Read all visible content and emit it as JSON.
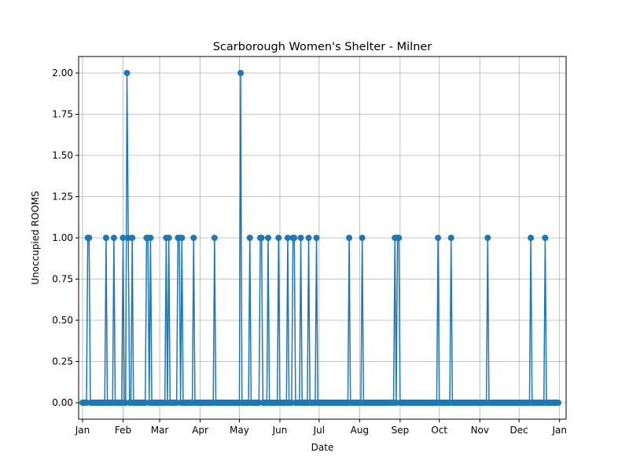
{
  "colors": {
    "series": "#1f77b4",
    "grid": "#b0b0b0",
    "axis": "#000000"
  },
  "chart_data": {
    "type": "line",
    "title": "Scarborough Women's Shelter - Milner",
    "xlabel": "Date",
    "ylabel": "Unoccupied ROOMS",
    "xaxis": "date",
    "xlim": [
      "2022-12-29",
      "2024-01-06"
    ],
    "ylim": [
      -0.1,
      2.1
    ],
    "yticks": [
      0.0,
      0.25,
      0.5,
      0.75,
      1.0,
      1.25,
      1.5,
      1.75,
      2.0
    ],
    "ytick_labels": [
      "0.00",
      "0.25",
      "0.50",
      "0.75",
      "1.00",
      "1.25",
      "1.50",
      "1.75",
      "2.00"
    ],
    "xticks": [
      "2023-01-01",
      "2023-02-01",
      "2023-03-01",
      "2023-04-01",
      "2023-05-01",
      "2023-06-01",
      "2023-07-01",
      "2023-08-01",
      "2023-09-01",
      "2023-10-01",
      "2023-11-01",
      "2023-12-01",
      "2024-01-01"
    ],
    "xtick_labels": [
      "Jan",
      "Feb",
      "Mar",
      "Apr",
      "May",
      "Jun",
      "Jul",
      "Aug",
      "Sep",
      "Oct",
      "Nov",
      "Dec",
      "Jan"
    ],
    "grid": true,
    "date_range": [
      "2023-01-01",
      "2023-12-31"
    ],
    "baseline": 0,
    "series": [
      {
        "name": "",
        "marker": "circle",
        "nonzero": [
          {
            "date": "2023-01-05",
            "value": 1
          },
          {
            "date": "2023-01-06",
            "value": 1
          },
          {
            "date": "2023-01-19",
            "value": 1
          },
          {
            "date": "2023-01-25",
            "value": 1
          },
          {
            "date": "2023-02-01",
            "value": 1
          },
          {
            "date": "2023-02-04",
            "value": 2
          },
          {
            "date": "2023-02-05",
            "value": 1
          },
          {
            "date": "2023-02-08",
            "value": 1
          },
          {
            "date": "2023-02-19",
            "value": 1
          },
          {
            "date": "2023-02-20",
            "value": 1
          },
          {
            "date": "2023-02-22",
            "value": 1
          },
          {
            "date": "2023-03-06",
            "value": 1
          },
          {
            "date": "2023-03-08",
            "value": 1
          },
          {
            "date": "2023-03-15",
            "value": 1
          },
          {
            "date": "2023-03-16",
            "value": 1
          },
          {
            "date": "2023-03-18",
            "value": 1
          },
          {
            "date": "2023-03-27",
            "value": 1
          },
          {
            "date": "2023-04-12",
            "value": 1
          },
          {
            "date": "2023-05-02",
            "value": 2
          },
          {
            "date": "2023-05-09",
            "value": 1
          },
          {
            "date": "2023-05-17",
            "value": 1
          },
          {
            "date": "2023-05-18",
            "value": 1
          },
          {
            "date": "2023-05-23",
            "value": 1
          },
          {
            "date": "2023-05-31",
            "value": 1
          },
          {
            "date": "2023-06-07",
            "value": 1
          },
          {
            "date": "2023-06-11",
            "value": 1
          },
          {
            "date": "2023-06-12",
            "value": 1
          },
          {
            "date": "2023-06-17",
            "value": 1
          },
          {
            "date": "2023-06-23",
            "value": 1
          },
          {
            "date": "2023-06-29",
            "value": 1
          },
          {
            "date": "2023-07-24",
            "value": 1
          },
          {
            "date": "2023-08-03",
            "value": 1
          },
          {
            "date": "2023-08-28",
            "value": 1
          },
          {
            "date": "2023-08-30",
            "value": 1
          },
          {
            "date": "2023-08-31",
            "value": 1
          },
          {
            "date": "2023-09-30",
            "value": 1
          },
          {
            "date": "2023-10-10",
            "value": 1
          },
          {
            "date": "2023-11-07",
            "value": 1
          },
          {
            "date": "2023-12-10",
            "value": 1
          },
          {
            "date": "2023-12-21",
            "value": 1
          }
        ]
      }
    ]
  }
}
